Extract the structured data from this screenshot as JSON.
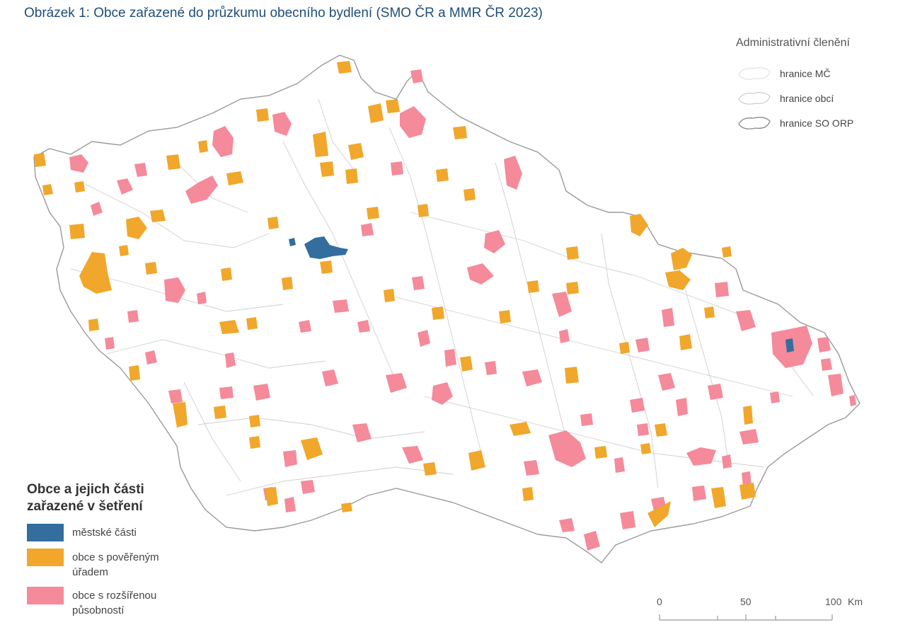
{
  "title": "Obrázek 1: Obce zařazené do průzkumu obecního bydlení (SMO ČR a MMR ČR 2023)",
  "admin_legend": {
    "heading": "Administrativní členění",
    "items": [
      {
        "label": "hranice MČ"
      },
      {
        "label": "hranice obcí"
      },
      {
        "label": "hranice SO ORP"
      }
    ]
  },
  "legend": {
    "heading_line1": "Obce a jejich části",
    "heading_line2": "zařazené v šetření",
    "items": [
      {
        "label_line1": "městské části",
        "label_line2": "",
        "color": "#336e9e"
      },
      {
        "label_line1": "obce s pověřeným",
        "label_line2": "úřadem",
        "color": "#f0a72b"
      },
      {
        "label_line1": "obce s rozšířenou",
        "label_line2": "působností",
        "color": "#f48a9a"
      }
    ]
  },
  "scale_bar": {
    "labels": [
      "0",
      "50",
      "100"
    ],
    "unit": "Km"
  },
  "colors": {
    "mc": "#336e9e",
    "pou": "#f0a72b",
    "orp": "#f48a9a",
    "boundary": "#c9c9c9",
    "land": "#ffffff"
  }
}
